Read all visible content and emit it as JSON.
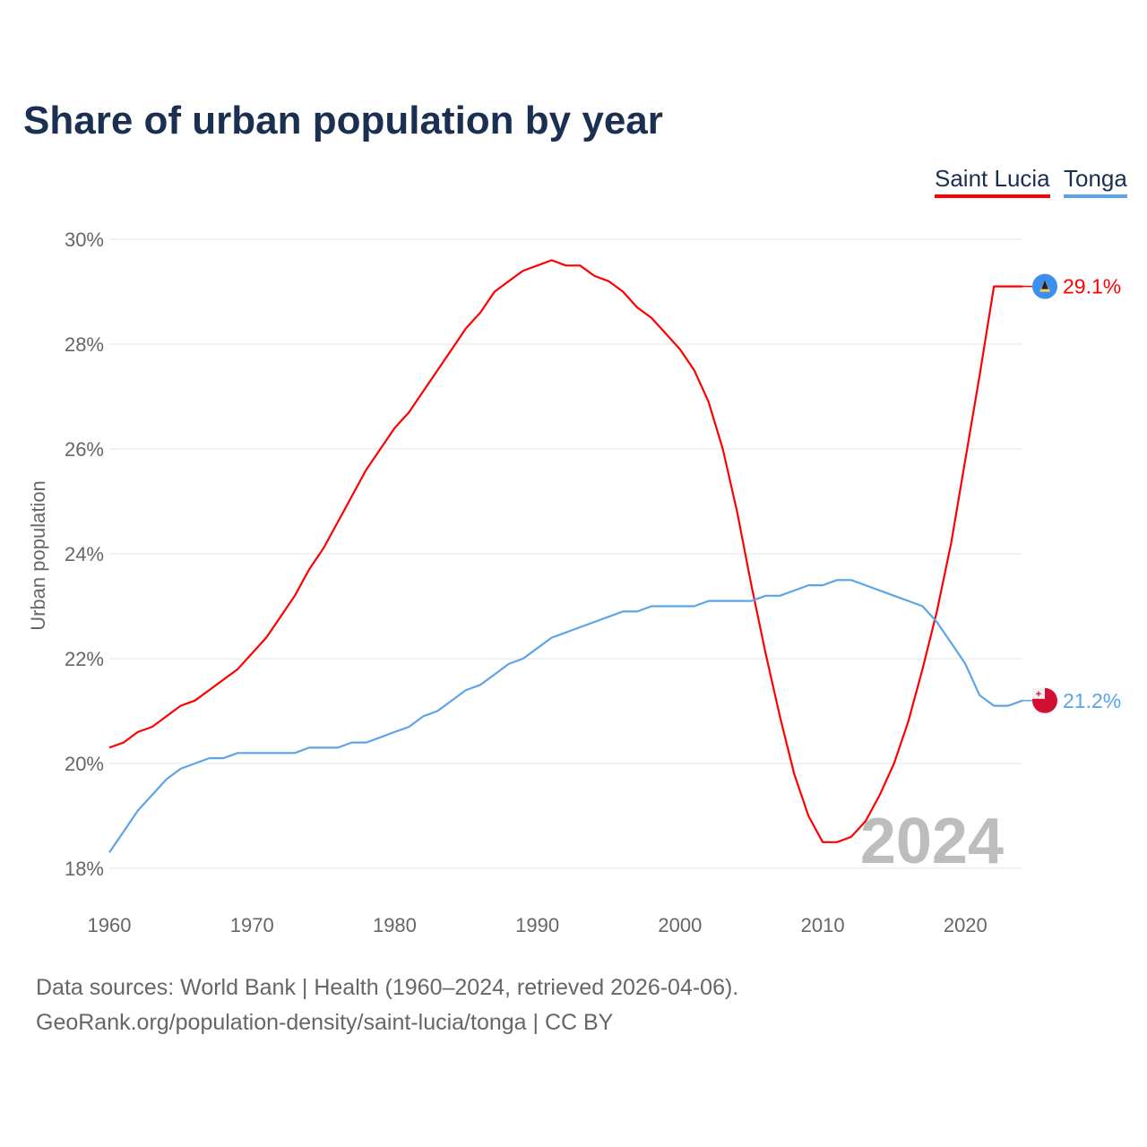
{
  "title": "Share of urban population by year",
  "footer": {
    "source": "Data sources: World Bank | Health (1960–2024, retrieved 2026-04-06).",
    "url": "GeoRank.org/population-density/saint-lucia/tonga | CC BY"
  },
  "chart_data": {
    "type": "line",
    "title": "Share of urban population by year",
    "xlabel": "",
    "ylabel": "Urban population",
    "xlim": [
      1960,
      2024
    ],
    "ylim": [
      18,
      30
    ],
    "xticks": [
      1960,
      1970,
      1980,
      1990,
      2000,
      2010,
      2020
    ],
    "yticks": [
      18,
      20,
      22,
      24,
      26,
      28,
      30
    ],
    "ytick_labels": [
      "18%",
      "20%",
      "22%",
      "24%",
      "26%",
      "28%",
      "30%"
    ],
    "xtick_labels": [
      "1960",
      "1970",
      "1980",
      "1990",
      "2000",
      "2010",
      "2020"
    ],
    "grid": true,
    "legend_position": "top-right",
    "watermark_year": "2024",
    "x_start": 1960,
    "series": [
      {
        "name": "Saint Lucia",
        "color": "#ff0000",
        "end_label": "29.1%",
        "flag_icon": "saint-lucia-flag-icon",
        "values": [
          20.3,
          20.4,
          20.6,
          20.7,
          20.9,
          21.1,
          21.2,
          21.4,
          21.6,
          21.8,
          22.1,
          22.4,
          22.8,
          23.2,
          23.7,
          24.1,
          24.6,
          25.1,
          25.6,
          26.0,
          26.4,
          26.7,
          27.1,
          27.5,
          27.9,
          28.3,
          28.6,
          29.0,
          29.2,
          29.4,
          29.5,
          29.6,
          29.5,
          29.5,
          29.3,
          29.2,
          29.0,
          28.7,
          28.5,
          28.2,
          27.9,
          27.5,
          26.9,
          26.0,
          24.8,
          23.4,
          22.1,
          20.9,
          19.8,
          19.0,
          18.5,
          18.5,
          18.6,
          18.9,
          19.4,
          20.0,
          20.8,
          21.8,
          22.9,
          24.2,
          25.8,
          27.4,
          29.1,
          29.1,
          29.1
        ]
      },
      {
        "name": "Tonga",
        "color": "#5ba4ea",
        "end_label": "21.2%",
        "flag_icon": "tonga-flag-icon",
        "values": [
          18.3,
          18.7,
          19.1,
          19.4,
          19.7,
          19.9,
          20.0,
          20.1,
          20.1,
          20.2,
          20.2,
          20.2,
          20.2,
          20.2,
          20.3,
          20.3,
          20.3,
          20.4,
          20.4,
          20.5,
          20.6,
          20.7,
          20.9,
          21.0,
          21.2,
          21.4,
          21.5,
          21.7,
          21.9,
          22.0,
          22.2,
          22.4,
          22.5,
          22.6,
          22.7,
          22.8,
          22.9,
          22.9,
          23.0,
          23.0,
          23.0,
          23.0,
          23.1,
          23.1,
          23.1,
          23.1,
          23.2,
          23.2,
          23.3,
          23.4,
          23.4,
          23.5,
          23.5,
          23.4,
          23.3,
          23.2,
          23.1,
          23.0,
          22.7,
          22.3,
          21.9,
          21.3,
          21.1,
          21.1,
          21.2
        ]
      }
    ]
  }
}
